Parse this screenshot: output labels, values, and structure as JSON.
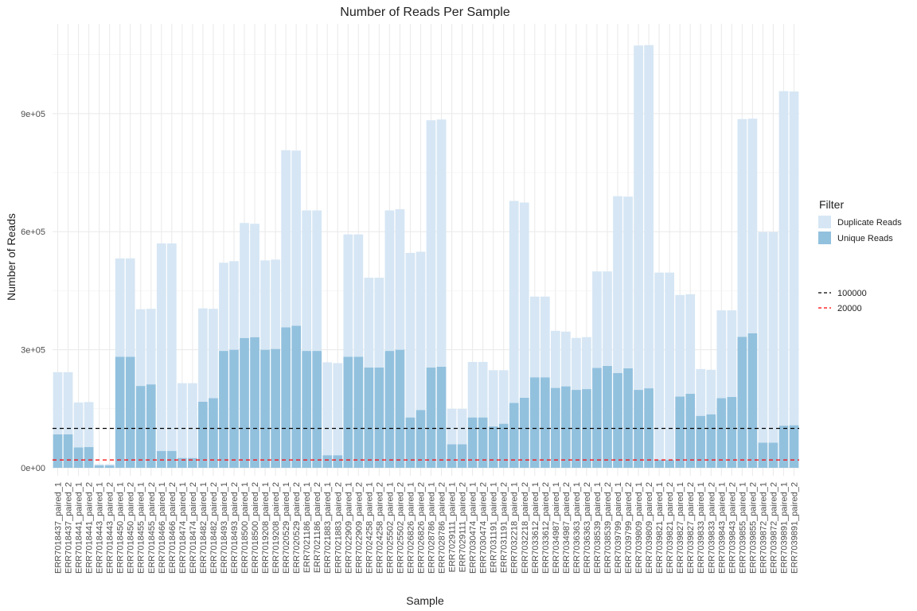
{
  "chart_data": {
    "type": "bar",
    "title": "Number of Reads Per Sample",
    "xlabel": "Sample",
    "ylabel": "Number of Reads",
    "ylim": [
      0,
      1100000
    ],
    "yticks": [
      {
        "value": 0,
        "label": "0e+00"
      },
      {
        "value": 300000,
        "label": "3e+05"
      },
      {
        "value": 600000,
        "label": "6e+05"
      },
      {
        "value": 900000,
        "label": "9e+05"
      }
    ],
    "grid": true,
    "legend_placement": "right",
    "categories": [
      "ERR7018437_paired_1",
      "ERR7018437_paired_2",
      "ERR7018441_paired_1",
      "ERR7018441_paired_2",
      "ERR7018443_paired_1",
      "ERR7018443_paired_2",
      "ERR7018450_paired_1",
      "ERR7018450_paired_2",
      "ERR7018455_paired_1",
      "ERR7018455_paired_2",
      "ERR7018466_paired_1",
      "ERR7018466_paired_2",
      "ERR7018474_paired_1",
      "ERR7018474_paired_2",
      "ERR7018482_paired_1",
      "ERR7018482_paired_2",
      "ERR7018493_paired_1",
      "ERR7018493_paired_2",
      "ERR7018500_paired_1",
      "ERR7018500_paired_2",
      "ERR7019208_paired_1",
      "ERR7019208_paired_2",
      "ERR7020529_paired_1",
      "ERR7020529_paired_2",
      "ERR7021186_paired_1",
      "ERR7021186_paired_2",
      "ERR7021883_paired_1",
      "ERR7021883_paired_2",
      "ERR7022909_paired_1",
      "ERR7022909_paired_2",
      "ERR7024258_paired_1",
      "ERR7024258_paired_2",
      "ERR7025502_paired_1",
      "ERR7025502_paired_2",
      "ERR7026826_paired_1",
      "ERR7026826_paired_2",
      "ERR7028786_paired_1",
      "ERR7028786_paired_2",
      "ERR7029111_paired_1",
      "ERR7029111_paired_2",
      "ERR7030474_paired_1",
      "ERR7030474_paired_2",
      "ERR7031191_paired_1",
      "ERR7031191_paired_2",
      "ERR7032218_paired_1",
      "ERR7032218_paired_2",
      "ERR7033612_paired_1",
      "ERR7033612_paired_2",
      "ERR7034987_paired_1",
      "ERR7034987_paired_2",
      "ERR7036363_paired_1",
      "ERR7036363_paired_2",
      "ERR7038539_paired_1",
      "ERR7038539_paired_2",
      "ERR7039799_paired_1",
      "ERR7039799_paired_2",
      "ERR7039809_paired_1",
      "ERR7039809_paired_2",
      "ERR7039821_paired_1",
      "ERR7039821_paired_2",
      "ERR7039827_paired_1",
      "ERR7039827_paired_2",
      "ERR7039833_paired_1",
      "ERR7039833_paired_2",
      "ERR7039843_paired_1",
      "ERR7039843_paired_2",
      "ERR7039855_paired_1",
      "ERR7039855_paired_2",
      "ERR7039872_paired_1",
      "ERR7039872_paired_2",
      "ERR7039891_paired_1",
      "ERR7039891_paired_2"
    ],
    "series": [
      {
        "name": "Duplicate Reads",
        "color": "#d6e6f4",
        "values": [
          158000,
          158000,
          114000,
          114000,
          3000,
          3000,
          250000,
          250000,
          195000,
          192000,
          527000,
          527000,
          190000,
          190000,
          237000,
          227000,
          224000,
          225000,
          292000,
          288000,
          227000,
          227000,
          450000,
          445000,
          357000,
          357000,
          236000,
          234000,
          311000,
          311000,
          228000,
          228000,
          357000,
          357000,
          418000,
          402000,
          628000,
          628000,
          90000,
          90000,
          141000,
          141000,
          143000,
          136000,
          513000,
          496000,
          205000,
          205000,
          145000,
          139000,
          132000,
          132000,
          245000,
          240000,
          449000,
          436000,
          875000,
          872000,
          476000,
          476000,
          258000,
          253000,
          119000,
          113000,
          223000,
          220000,
          553000,
          545000,
          535000,
          535000,
          850000,
          848000
        ]
      },
      {
        "name": "Unique Reads",
        "color": "#92c1de",
        "values": [
          85000,
          85000,
          52000,
          53000,
          6000,
          6000,
          282000,
          282000,
          208000,
          212000,
          43000,
          43000,
          25000,
          25000,
          168000,
          177000,
          297000,
          300000,
          330000,
          332000,
          300000,
          302000,
          357000,
          361000,
          297000,
          297000,
          32000,
          32000,
          282000,
          282000,
          255000,
          255000,
          297000,
          300000,
          128000,
          147000,
          255000,
          257000,
          60000,
          60000,
          128000,
          128000,
          105000,
          112000,
          165000,
          178000,
          230000,
          230000,
          203000,
          207000,
          198000,
          200000,
          254000,
          259000,
          241000,
          253000,
          198000,
          202000,
          20000,
          20000,
          181000,
          188000,
          132000,
          136000,
          177000,
          180000,
          333000,
          342000,
          64000,
          64000,
          107000,
          108000
        ]
      }
    ],
    "hlines": [
      {
        "value": 100000,
        "label": "100000",
        "color": "#000000"
      },
      {
        "value": 20000,
        "label": "20000",
        "color": "#ff0000"
      }
    ],
    "legend": {
      "title": "Filter",
      "fill_items": [
        {
          "label": "Duplicate Reads",
          "color": "#d6e6f4"
        },
        {
          "label": "Unique Reads",
          "color": "#92c1de"
        }
      ],
      "line_items": [
        {
          "label": "100000",
          "color": "#000000"
        },
        {
          "label": "20000",
          "color": "#ff0000"
        }
      ]
    }
  }
}
